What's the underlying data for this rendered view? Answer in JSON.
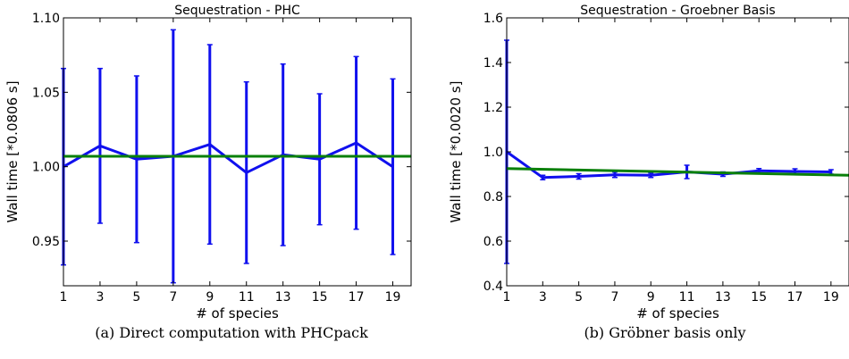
{
  "captions": {
    "left": "(a) Direct computation with PHCpack",
    "right": "(b) Gröbner basis only"
  },
  "chart_data": [
    {
      "type": "line",
      "title": "Sequestration - PHC",
      "xlabel": "# of species",
      "ylabel": "Wall time [*0.0806 s]",
      "xlim": [
        1,
        20
      ],
      "ylim": [
        0.92,
        1.1
      ],
      "xticks": [
        "1",
        "3",
        "5",
        "7",
        "9",
        "11",
        "13",
        "15",
        "17",
        "19"
      ],
      "yticks": [
        "0.95",
        "1.00",
        "1.05",
        "1.10"
      ],
      "grid": false,
      "series": [
        {
          "color": "#1010ee",
          "x": [
            1,
            3,
            5,
            7,
            9,
            11,
            13,
            15,
            17,
            19
          ],
          "y": [
            1.0,
            1.014,
            1.005,
            1.007,
            1.015,
            0.996,
            1.008,
            1.005,
            1.016,
            1.0
          ],
          "err": [
            0.066,
            0.052,
            0.056,
            0.085,
            0.067,
            0.061,
            0.061,
            0.044,
            0.058,
            0.059
          ]
        },
        {
          "color": "#0a800a",
          "x": [
            1,
            20
          ],
          "y": [
            1.007,
            1.007
          ]
        }
      ]
    },
    {
      "type": "line",
      "title": "Sequestration - Groebner Basis",
      "xlabel": "# of species",
      "ylabel": "Wall time [*0.0020 s]",
      "xlim": [
        1,
        20
      ],
      "ylim": [
        0.4,
        1.6
      ],
      "xticks": [
        "1",
        "3",
        "5",
        "7",
        "9",
        "11",
        "13",
        "15",
        "17",
        "19"
      ],
      "yticks": [
        "0.4",
        "0.6",
        "0.8",
        "1.0",
        "1.2",
        "1.4",
        "1.6"
      ],
      "grid": false,
      "series": [
        {
          "color": "#1010ee",
          "x": [
            1,
            3,
            5,
            7,
            9,
            11,
            13,
            15,
            17,
            19
          ],
          "y": [
            1.0,
            0.885,
            0.89,
            0.897,
            0.895,
            0.91,
            0.9,
            0.915,
            0.912,
            0.91
          ],
          "err": [
            0.5,
            0.01,
            0.012,
            0.012,
            0.01,
            0.03,
            0.01,
            0.01,
            0.012,
            0.01
          ]
        },
        {
          "color": "#0a800a",
          "x": [
            1,
            20
          ],
          "y": [
            0.925,
            0.895
          ]
        }
      ]
    }
  ]
}
